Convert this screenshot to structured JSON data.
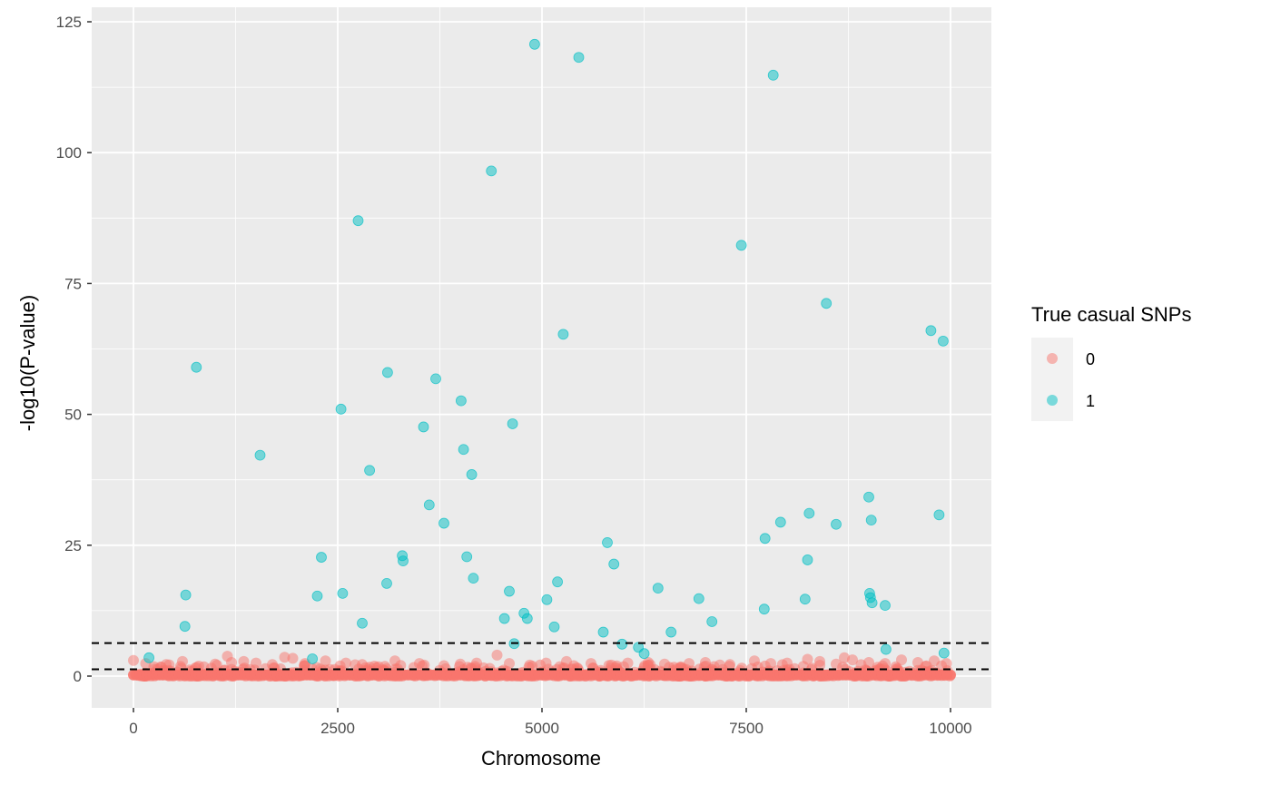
{
  "chart_data": {
    "type": "scatter",
    "title": "",
    "xlabel": "Chromosome",
    "ylabel": "-log10(P-value)",
    "xlim": [
      -500,
      10500
    ],
    "ylim": [
      -6,
      125
    ],
    "x_ticks": [
      0,
      2500,
      5000,
      7500,
      10000
    ],
    "x_tick_labels": [
      "0",
      "2500",
      "5000",
      "7500",
      "10000"
    ],
    "y_ticks": [
      0,
      25,
      50,
      75,
      100,
      125
    ],
    "y_tick_labels": [
      "0",
      "25",
      "50",
      "75",
      "100",
      "125"
    ],
    "grid": true,
    "background": "#ebebeb",
    "thresholds": [
      1.3,
      6.3
    ],
    "legend": {
      "title": "True casual SNPs",
      "position": "right",
      "entries": [
        {
          "label": "0",
          "color": "#F8766D"
        },
        {
          "label": "1",
          "color": "#00BFC4"
        }
      ]
    },
    "series": [
      {
        "label": "0",
        "color": "#F8766D",
        "n_points": 9900,
        "x_range": [
          0,
          10000
        ],
        "y_range": [
          0,
          4
        ],
        "points": [
          [
            0,
            3.0
          ],
          [
            150,
            2.4
          ],
          [
            250,
            1.8
          ],
          [
            400,
            2.2
          ],
          [
            600,
            2.8
          ],
          [
            800,
            1.9
          ],
          [
            1000,
            2.3
          ],
          [
            1150,
            3.8
          ],
          [
            1200,
            2.6
          ],
          [
            1350,
            2.8
          ],
          [
            1500,
            2.5
          ],
          [
            1700,
            2.2
          ],
          [
            1850,
            3.6
          ],
          [
            1950,
            3.4
          ],
          [
            2100,
            2.4
          ],
          [
            2350,
            2.9
          ],
          [
            2600,
            2.5
          ],
          [
            2800,
            2.2
          ],
          [
            3000,
            1.8
          ],
          [
            3200,
            2.9
          ],
          [
            3500,
            2.4
          ],
          [
            3800,
            2.0
          ],
          [
            4000,
            2.3
          ],
          [
            4200,
            2.5
          ],
          [
            4450,
            4.0
          ],
          [
            4600,
            2.4
          ],
          [
            4850,
            2.1
          ],
          [
            5050,
            2.5
          ],
          [
            5300,
            2.8
          ],
          [
            5600,
            2.4
          ],
          [
            5850,
            2.1
          ],
          [
            6050,
            2.5
          ],
          [
            6300,
            2.6
          ],
          [
            6500,
            2.3
          ],
          [
            6800,
            2.4
          ],
          [
            7000,
            2.6
          ],
          [
            7300,
            2.2
          ],
          [
            7600,
            2.9
          ],
          [
            7800,
            2.4
          ],
          [
            8000,
            2.5
          ],
          [
            8250,
            3.2
          ],
          [
            8400,
            2.8
          ],
          [
            8600,
            2.3
          ],
          [
            8700,
            3.5
          ],
          [
            8800,
            3.1
          ],
          [
            9000,
            2.6
          ],
          [
            9200,
            2.4
          ],
          [
            9400,
            3.1
          ],
          [
            9600,
            2.6
          ],
          [
            9800,
            2.9
          ],
          [
            9950,
            2.4
          ]
        ]
      },
      {
        "label": "1",
        "color": "#00BFC4",
        "points": [
          [
            190,
            3.5
          ],
          [
            630,
            9.5
          ],
          [
            640,
            15.5
          ],
          [
            770,
            59.0
          ],
          [
            1550,
            42.2
          ],
          [
            2250,
            15.3
          ],
          [
            2300,
            22.7
          ],
          [
            2190,
            3.3
          ],
          [
            2540,
            51.0
          ],
          [
            2560,
            15.8
          ],
          [
            2750,
            87.0
          ],
          [
            2800,
            10.1
          ],
          [
            2890,
            39.3
          ],
          [
            3100,
            17.7
          ],
          [
            3110,
            58.0
          ],
          [
            3290,
            23.0
          ],
          [
            3300,
            22.0
          ],
          [
            3550,
            47.6
          ],
          [
            3620,
            32.7
          ],
          [
            3700,
            56.8
          ],
          [
            3800,
            29.2
          ],
          [
            4010,
            52.6
          ],
          [
            4040,
            43.3
          ],
          [
            4080,
            22.8
          ],
          [
            4140,
            38.5
          ],
          [
            4160,
            18.7
          ],
          [
            4380,
            96.5
          ],
          [
            4540,
            11.0
          ],
          [
            4600,
            16.2
          ],
          [
            4640,
            48.2
          ],
          [
            4660,
            6.2
          ],
          [
            4780,
            12.0
          ],
          [
            4820,
            11.0
          ],
          [
            4910,
            120.7
          ],
          [
            5060,
            14.6
          ],
          [
            5150,
            9.4
          ],
          [
            5190,
            18.0
          ],
          [
            5260,
            65.3
          ],
          [
            5450,
            118.2
          ],
          [
            5750,
            8.4
          ],
          [
            5800,
            25.5
          ],
          [
            5880,
            21.4
          ],
          [
            5980,
            6.1
          ],
          [
            6180,
            5.5
          ],
          [
            6250,
            4.3
          ],
          [
            6420,
            16.8
          ],
          [
            6580,
            8.4
          ],
          [
            6920,
            14.8
          ],
          [
            7080,
            10.4
          ],
          [
            7440,
            82.3
          ],
          [
            7720,
            12.8
          ],
          [
            7730,
            26.3
          ],
          [
            7830,
            114.8
          ],
          [
            7920,
            29.4
          ],
          [
            8220,
            14.7
          ],
          [
            8250,
            22.2
          ],
          [
            8270,
            31.1
          ],
          [
            8480,
            71.2
          ],
          [
            8600,
            29.0
          ],
          [
            9000,
            34.2
          ],
          [
            9010,
            15.8
          ],
          [
            9020,
            15.0
          ],
          [
            9030,
            29.8
          ],
          [
            9040,
            14.0
          ],
          [
            9200,
            13.5
          ],
          [
            9210,
            5.1
          ],
          [
            9760,
            66.0
          ],
          [
            9860,
            30.8
          ],
          [
            9910,
            64.0
          ],
          [
            9920,
            4.4
          ]
        ]
      }
    ]
  }
}
